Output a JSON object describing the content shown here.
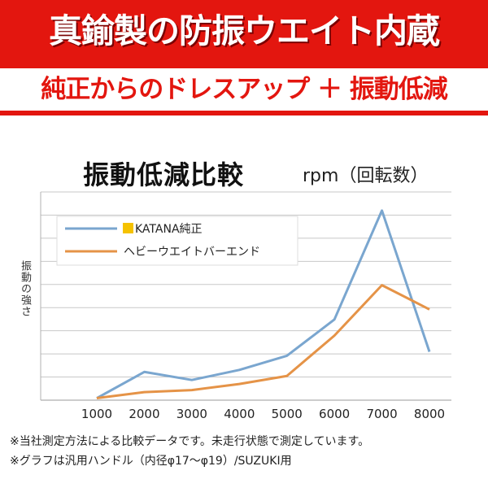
{
  "header": {
    "headline": "真鍮製の防振ウエイト内蔵",
    "subline": "純正からのドレスアップ ＋ 振動低減"
  },
  "chart_data": {
    "type": "line",
    "title": "振動低減比較",
    "xlabel": "rpm（回転数）",
    "ylabel": "振動の強さ",
    "x": [
      1000,
      2000,
      3000,
      4000,
      5000,
      6000,
      7000,
      8000
    ],
    "xlim": [
      1000,
      8000
    ],
    "ylim": [
      0,
      100
    ],
    "grid": true,
    "legend_position": "top-left",
    "series": [
      {
        "name": "KATANA純正",
        "color": "#7aa6cf",
        "values": [
          1,
          14,
          10,
          15,
          22,
          40,
          94,
          24
        ]
      },
      {
        "name": "ヘビーウエイトバーエンド",
        "color": "#e59347",
        "values": [
          1,
          4,
          5,
          8,
          12,
          32,
          57,
          45
        ]
      }
    ],
    "legend_marker_color": "#f5c200"
  },
  "notes": [
    "※当社測定方法による比較データです。未走行状態で測定しています。",
    "※グラフは汎用ハンドル（内径φ17～φ19）/SUZUKI用"
  ]
}
